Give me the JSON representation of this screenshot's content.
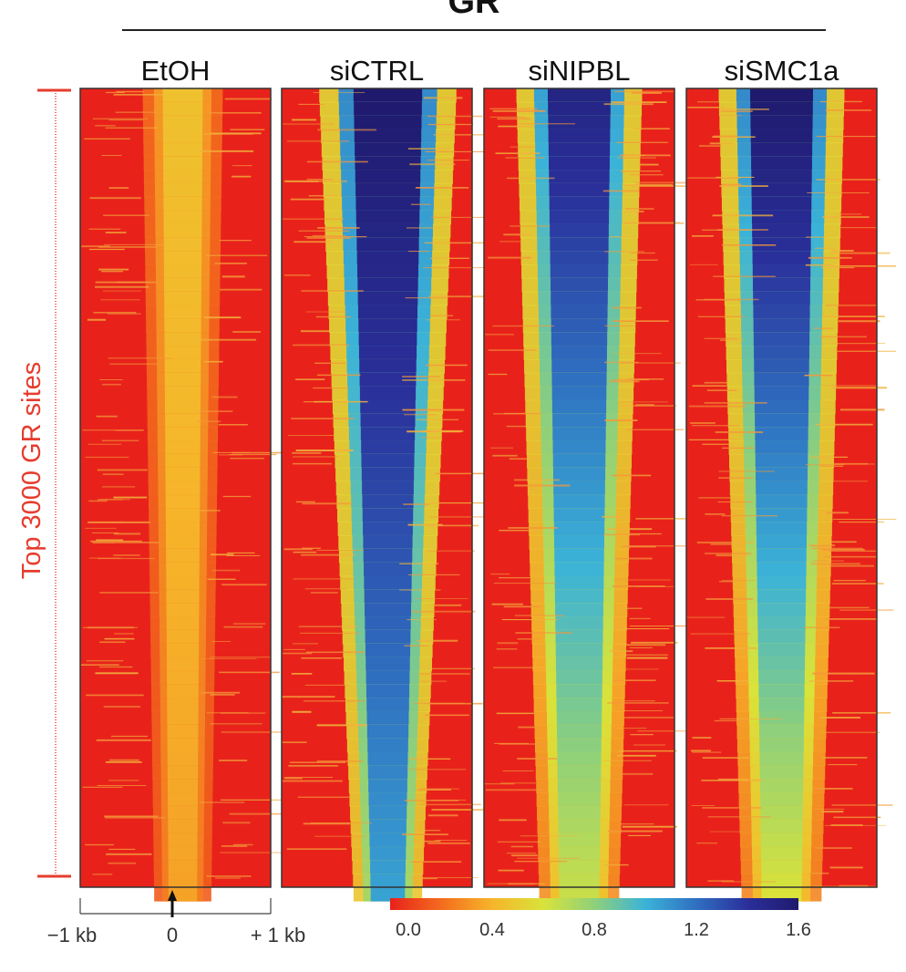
{
  "chart_data": {
    "type": "heatmap",
    "title": "GR",
    "row_label": "Top 3000 GR sites",
    "n_rows": 3000,
    "x_axis": {
      "range_kb": [
        -1,
        1
      ],
      "tick_labels": [
        "−1 kb",
        "0",
        "+ 1 kb"
      ],
      "center_marker": "arrow-up"
    },
    "panels": [
      {
        "name": "EtOH",
        "signal_top": 0.45,
        "signal_bottom": 0.35,
        "width_top_kb": 0.35,
        "width_bottom_kb": 0.25
      },
      {
        "name": "siCTRL",
        "signal_top": 1.6,
        "signal_bottom": 1.05,
        "width_top_kb": 0.6,
        "width_bottom_kb": 0.3
      },
      {
        "name": "siNIPBL",
        "signal_top": 1.5,
        "signal_bottom": 0.65,
        "width_top_kb": 0.55,
        "width_bottom_kb": 0.35
      },
      {
        "name": "siSMC1a",
        "signal_top": 1.6,
        "signal_bottom": 0.6,
        "width_top_kb": 0.55,
        "width_bottom_kb": 0.35
      }
    ],
    "colorbar": {
      "ticks": [
        "0.0",
        "0.4",
        "0.8",
        "1.2",
        "1.6"
      ],
      "range": [
        0,
        1.6
      ],
      "colors": [
        "#e8221b",
        "#f36c1e",
        "#f6b52a",
        "#d9e33a",
        "#8fd07a",
        "#3bb3d8",
        "#2f6fc0",
        "#2a2f9a",
        "#1f1a6e"
      ]
    }
  }
}
